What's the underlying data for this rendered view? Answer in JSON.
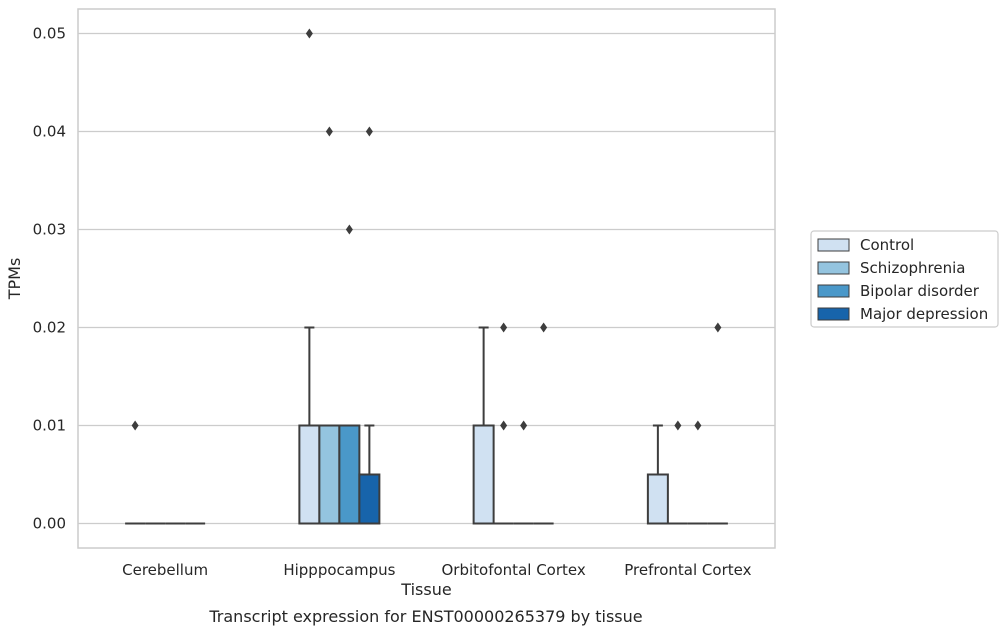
{
  "caption": "Transcript expression for ENST00000265379 by tissue",
  "chart_data": {
    "type": "box",
    "xlabel": "Tissue",
    "ylabel": "TPMs",
    "ylim": [
      -0.0025,
      0.0525
    ],
    "yticks": [
      "0.00",
      "0.01",
      "0.02",
      "0.03",
      "0.04",
      "0.05"
    ],
    "grid": true,
    "legend_position": "right",
    "categories": [
      "Cerebellum",
      "Hipppocampus",
      "Orbitofontal Cortex",
      "Prefrontal Cortex"
    ],
    "series": [
      {
        "name": "Control",
        "color": "#d0e1f2",
        "boxes": [
          {
            "q1": 0.0,
            "median": 0.0,
            "q3": 0.0,
            "whislo": 0.0,
            "whishi": 0.0,
            "fliers": [
              0.01
            ]
          },
          {
            "q1": 0.0,
            "median": 0.0,
            "q3": 0.01,
            "whislo": 0.0,
            "whishi": 0.02,
            "fliers": [
              0.05
            ]
          },
          {
            "q1": 0.0,
            "median": 0.0,
            "q3": 0.01,
            "whislo": 0.0,
            "whishi": 0.02,
            "fliers": []
          },
          {
            "q1": 0.0,
            "median": 0.0,
            "q3": 0.005,
            "whislo": 0.0,
            "whishi": 0.01,
            "fliers": []
          }
        ]
      },
      {
        "name": "Schizophrenia",
        "color": "#94c4df",
        "boxes": [
          {
            "q1": 0.0,
            "median": 0.0,
            "q3": 0.0,
            "whislo": 0.0,
            "whishi": 0.0,
            "fliers": []
          },
          {
            "q1": 0.0,
            "median": 0.0,
            "q3": 0.01,
            "whislo": 0.0,
            "whishi": 0.01,
            "fliers": [
              0.04
            ]
          },
          {
            "q1": 0.0,
            "median": 0.0,
            "q3": 0.0,
            "whislo": 0.0,
            "whishi": 0.0,
            "fliers": [
              0.01,
              0.02
            ]
          },
          {
            "q1": 0.0,
            "median": 0.0,
            "q3": 0.0,
            "whislo": 0.0,
            "whishi": 0.0,
            "fliers": [
              0.01
            ]
          }
        ]
      },
      {
        "name": "Bipolar disorder",
        "color": "#4a98c9",
        "boxes": [
          {
            "q1": 0.0,
            "median": 0.0,
            "q3": 0.0,
            "whislo": 0.0,
            "whishi": 0.0,
            "fliers": []
          },
          {
            "q1": 0.0,
            "median": 0.0,
            "q3": 0.01,
            "whislo": 0.0,
            "whishi": 0.01,
            "fliers": [
              0.03
            ]
          },
          {
            "q1": 0.0,
            "median": 0.0,
            "q3": 0.0,
            "whislo": 0.0,
            "whishi": 0.0,
            "fliers": [
              0.01
            ]
          },
          {
            "q1": 0.0,
            "median": 0.0,
            "q3": 0.0,
            "whislo": 0.0,
            "whishi": 0.0,
            "fliers": [
              0.01
            ]
          }
        ]
      },
      {
        "name": "Major depression",
        "color": "#1764ab",
        "boxes": [
          {
            "q1": 0.0,
            "median": 0.0,
            "q3": 0.0,
            "whislo": 0.0,
            "whishi": 0.0,
            "fliers": []
          },
          {
            "q1": 0.0,
            "median": 0.0,
            "q3": 0.005,
            "whislo": 0.0,
            "whishi": 0.01,
            "fliers": [
              0.04
            ]
          },
          {
            "q1": 0.0,
            "median": 0.0,
            "q3": 0.0,
            "whislo": 0.0,
            "whishi": 0.0,
            "fliers": [
              0.02
            ]
          },
          {
            "q1": 0.0,
            "median": 0.0,
            "q3": 0.0,
            "whislo": 0.0,
            "whishi": 0.0,
            "fliers": [
              0.02
            ]
          }
        ]
      }
    ]
  }
}
